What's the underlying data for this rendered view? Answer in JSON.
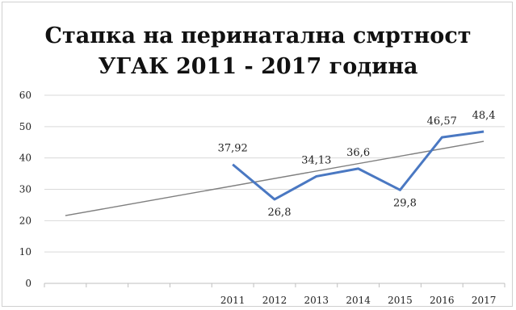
{
  "chart_data": {
    "type": "line",
    "title_line1": "Стапка на перинатална смртност",
    "title_line2": "УГАК 2011 - 2017 година",
    "xlabel": "",
    "ylabel": "",
    "ylim": [
      0,
      60
    ],
    "yticks": [
      "0",
      "10",
      "20",
      "30",
      "40",
      "50",
      "60"
    ],
    "categories": [
      "",
      "",
      "",
      "",
      "2011",
      "2012",
      "2013",
      "2014",
      "2015",
      "2016",
      "2017"
    ],
    "series": [
      {
        "values": [
          null,
          null,
          null,
          null,
          37.92,
          26.8,
          34.13,
          36.6,
          29.8,
          46.57,
          48.4
        ],
        "labels": [
          "",
          "",
          "",
          "",
          "37,92",
          "26,8",
          "34,13",
          "36,6",
          "29,8",
          "46,57",
          "48,4"
        ],
        "color": "#4a78c2"
      }
    ],
    "trendline": {
      "start": 21.6,
      "end": 45.3,
      "color": "#7f7f7f"
    },
    "grid": true,
    "legend": "none"
  }
}
